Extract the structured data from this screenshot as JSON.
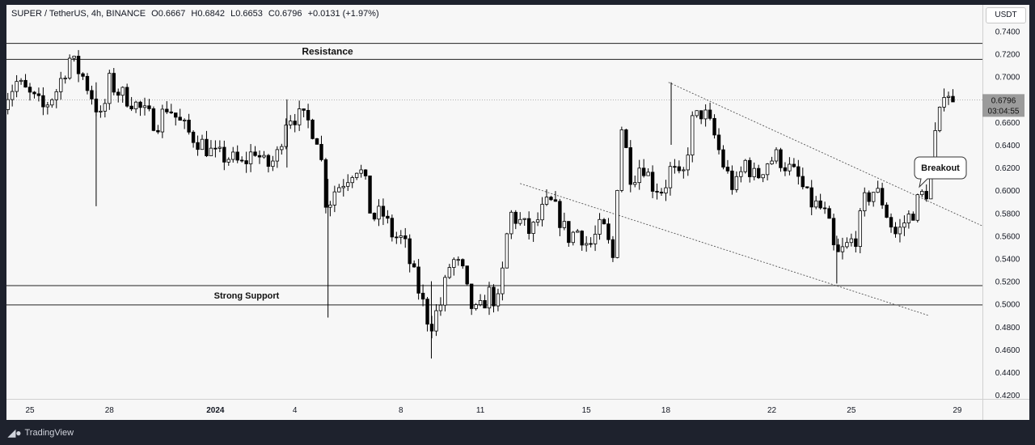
{
  "legend": {
    "symbol": "SUPER / TetherUS, 4h, BINANCE",
    "open": "O0.6667",
    "high": "H0.6842",
    "low": "L0.6653",
    "close": "C0.6796",
    "change": "+0.0131 (+1.97%)"
  },
  "price_scale": {
    "currency": "USDT",
    "ticks": [
      "0.7400",
      "0.7200",
      "0.7000",
      "0.6800",
      "0.6600",
      "0.6400",
      "0.6200",
      "0.6000",
      "0.5800",
      "0.5600",
      "0.5400",
      "0.5200",
      "0.5000",
      "0.4800",
      "0.4600",
      "0.4400",
      "0.4200"
    ],
    "last_price": "0.6796",
    "countdown": "03:04:55"
  },
  "time_scale": {
    "labels": [
      "25",
      "28",
      "2024",
      "4",
      "8",
      "11",
      "15",
      "18",
      "22",
      "25",
      "29"
    ]
  },
  "annotations": {
    "resistance": "Resistance",
    "support": "Strong Support",
    "breakout": "Breakout"
  },
  "brand": {
    "name": "TradingView"
  },
  "colors": {
    "candle": "#000000",
    "background": "#f7f7f7",
    "frame": "#1e222d",
    "last_price_badge": "#9b9b9b"
  },
  "chart_data": {
    "type": "candlestick",
    "symbol": "SUPER / TetherUS",
    "interval": "4h",
    "exchange": "BINANCE",
    "ylim": [
      0.41,
      0.755
    ],
    "y_ticks": [
      0.74,
      0.72,
      0.7,
      0.68,
      0.66,
      0.64,
      0.62,
      0.6,
      0.58,
      0.56,
      0.54,
      0.52,
      0.5,
      0.48,
      0.46,
      0.44,
      0.42
    ],
    "x_range_days": [
      "Dec 24",
      "Jan 30"
    ],
    "x_tick_days": [
      {
        "label": "25",
        "day": 25
      },
      {
        "label": "28",
        "day": 28
      },
      {
        "label": "2024",
        "day": 32
      },
      {
        "label": "4",
        "day": 35
      },
      {
        "label": "8",
        "day": 39
      },
      {
        "label": "11",
        "day": 42
      },
      {
        "label": "15",
        "day": 46
      },
      {
        "label": "18",
        "day": 49
      },
      {
        "label": "22",
        "day": 53
      },
      {
        "label": "25",
        "day": 56
      },
      {
        "label": "29",
        "day": 60
      }
    ],
    "horizontal_levels": [
      {
        "name": "Resistance",
        "values": [
          0.7292,
          0.7152
        ]
      },
      {
        "name": "Strong Support",
        "values": [
          0.5162,
          0.4992
        ]
      }
    ],
    "trendlines": [
      {
        "from": {
          "day": 49.1,
          "price": 0.695
        },
        "to": {
          "day": 61.1,
          "price": 0.567
        }
      },
      {
        "from": {
          "day": 43.5,
          "price": 0.606
        },
        "to": {
          "day": 58.9,
          "price": 0.49
        }
      }
    ],
    "last_price": 0.6796,
    "path": [
      [
        24.0,
        0.68
      ],
      [
        24.5,
        0.695
      ],
      [
        25.0,
        0.683
      ],
      [
        25.5,
        0.672
      ],
      [
        26.0,
        0.688
      ],
      [
        26.5,
        0.716
      ],
      [
        27.0,
        0.7
      ],
      [
        27.4,
        0.68
      ],
      [
        27.7,
        0.661
      ],
      [
        28.0,
        0.695
      ],
      [
        28.4,
        0.685
      ],
      [
        28.8,
        0.68
      ],
      [
        29.3,
        0.668
      ],
      [
        29.8,
        0.659
      ],
      [
        30.2,
        0.675
      ],
      [
        30.6,
        0.661
      ],
      [
        31.0,
        0.65
      ],
      [
        31.5,
        0.641
      ],
      [
        32.0,
        0.63
      ],
      [
        32.5,
        0.629
      ],
      [
        33.0,
        0.622
      ],
      [
        33.5,
        0.636
      ],
      [
        33.9,
        0.62
      ],
      [
        34.3,
        0.628
      ],
      [
        34.7,
        0.666
      ],
      [
        35.1,
        0.665
      ],
      [
        35.5,
        0.66
      ],
      [
        35.9,
        0.645
      ],
      [
        36.2,
        0.585
      ],
      [
        36.5,
        0.6
      ],
      [
        36.9,
        0.61
      ],
      [
        37.3,
        0.622
      ],
      [
        37.6,
        0.612
      ],
      [
        37.9,
        0.575
      ],
      [
        38.3,
        0.58
      ],
      [
        38.7,
        0.56
      ],
      [
        39.1,
        0.556
      ],
      [
        39.4,
        0.531
      ],
      [
        39.7,
        0.51
      ],
      [
        40.1,
        0.48
      ],
      [
        40.5,
        0.5
      ],
      [
        40.9,
        0.54
      ],
      [
        41.3,
        0.53
      ],
      [
        41.6,
        0.5
      ],
      [
        41.9,
        0.49
      ],
      [
        42.3,
        0.51
      ],
      [
        42.7,
        0.5
      ],
      [
        43.1,
        0.58
      ],
      [
        43.5,
        0.572
      ],
      [
        43.9,
        0.562
      ],
      [
        44.3,
        0.58
      ],
      [
        44.6,
        0.59
      ],
      [
        44.9,
        0.58
      ],
      [
        45.3,
        0.559
      ],
      [
        45.7,
        0.565
      ],
      [
        46.1,
        0.55
      ],
      [
        46.6,
        0.57
      ],
      [
        47.0,
        0.54
      ],
      [
        47.3,
        0.66
      ],
      [
        47.7,
        0.61
      ],
      [
        48.1,
        0.625
      ],
      [
        48.5,
        0.605
      ],
      [
        48.9,
        0.6
      ],
      [
        49.2,
        0.62
      ],
      [
        49.6,
        0.605
      ],
      [
        50.0,
        0.66
      ],
      [
        50.4,
        0.67
      ],
      [
        50.8,
        0.65
      ],
      [
        51.2,
        0.62
      ],
      [
        51.6,
        0.6
      ],
      [
        52.0,
        0.625
      ],
      [
        52.4,
        0.61
      ],
      [
        52.8,
        0.625
      ],
      [
        53.2,
        0.63
      ],
      [
        53.6,
        0.62
      ],
      [
        54.0,
        0.61
      ],
      [
        54.4,
        0.59
      ],
      [
        54.8,
        0.585
      ],
      [
        55.1,
        0.575
      ],
      [
        55.4,
        0.54
      ],
      [
        55.8,
        0.55
      ],
      [
        56.2,
        0.56
      ],
      [
        56.5,
        0.59
      ],
      [
        56.8,
        0.6
      ],
      [
        57.1,
        0.595
      ],
      [
        57.4,
        0.575
      ],
      [
        57.7,
        0.56
      ],
      [
        58.0,
        0.572
      ],
      [
        58.3,
        0.58
      ],
      [
        58.6,
        0.595
      ],
      [
        58.9,
        0.6
      ],
      [
        59.1,
        0.64
      ],
      [
        59.3,
        0.66
      ],
      [
        59.5,
        0.69
      ],
      [
        59.7,
        0.686
      ],
      [
        59.9,
        0.668
      ]
    ]
  }
}
